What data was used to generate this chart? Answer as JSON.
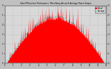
{
  "title": "Solar PV/Inverter Performance  West Array Actual & Average Power Output",
  "bg_color": "#c0c0c0",
  "plot_bg": "#d8d8d8",
  "grid_color": "#aaaaaa",
  "bar_color": "#ff0000",
  "avg_color": "#00cccc",
  "ylim_max": 6,
  "n_points": 300,
  "title_color": "#000000",
  "legend_actual_color": "#ff0000",
  "legend_avg_color": "#00cccc",
  "legend_actual_label": "Actual",
  "legend_avg_label": "Average",
  "yticks": [
    0,
    1,
    2,
    3,
    4,
    5,
    6
  ],
  "tick_color": "#000000",
  "spine_color": "#888888"
}
